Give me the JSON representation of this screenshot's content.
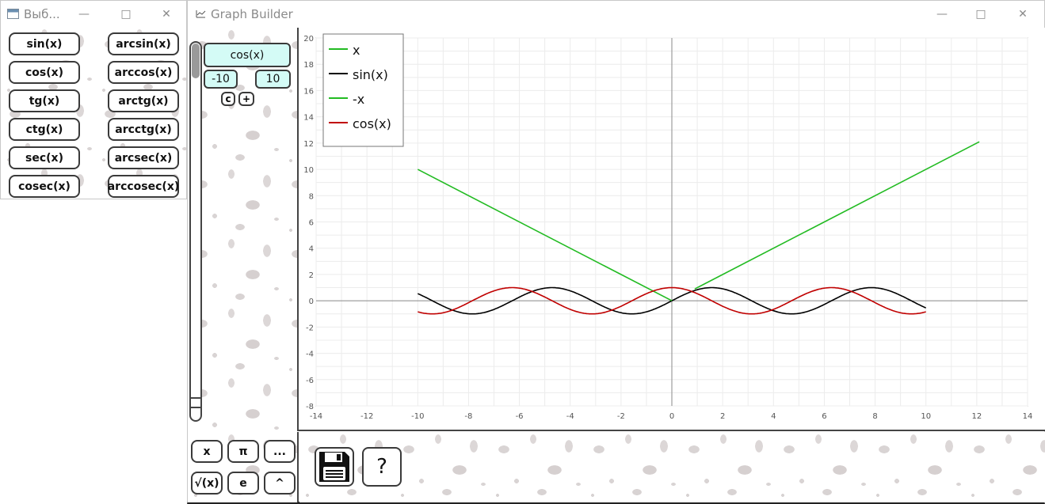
{
  "picker": {
    "title": "Выб...",
    "functions_left": [
      "sin(x)",
      "cos(x)",
      "tg(x)",
      "ctg(x)",
      "sec(x)",
      "cosec(x)"
    ],
    "functions_right": [
      "arcsin(x)",
      "arccos(x)",
      "arctg(x)",
      "arcctg(x)",
      "arcsec(x)",
      "arccosec(x)"
    ]
  },
  "main": {
    "title": "Graph Builder"
  },
  "side": {
    "expression": "cos(x)",
    "range_from": "-10",
    "range_to": "10",
    "btn_c": "c",
    "btn_plus": "+"
  },
  "keypad": {
    "row1": [
      "x",
      "π",
      "..."
    ],
    "row2": [
      "√(x)",
      "e",
      "^"
    ]
  },
  "help": {
    "label": "?"
  },
  "chart_data": {
    "type": "line",
    "xlim": [
      -14,
      14
    ],
    "ylim": [
      -8,
      20
    ],
    "x_ticks": [
      -14,
      -12,
      -10,
      -8,
      -6,
      -4,
      -2,
      0,
      2,
      4,
      6,
      8,
      10,
      12,
      14
    ],
    "y_ticks": [
      -8,
      -6,
      -4,
      -2,
      0,
      2,
      4,
      6,
      8,
      10,
      12,
      14,
      16,
      18,
      20
    ],
    "grid": true,
    "legend_position": "top-left",
    "series": [
      {
        "name": "x",
        "color": "#22bb22",
        "points": [
          [
            0.9,
            0.9
          ],
          [
            12.1,
            12.1
          ]
        ]
      },
      {
        "name": "sin(x)",
        "color": "#000000",
        "function": "sin",
        "domain": [
          -10,
          10
        ]
      },
      {
        "name": "-x",
        "color": "#22bb22",
        "points": [
          [
            -10,
            10
          ],
          [
            0,
            0
          ]
        ]
      },
      {
        "name": "cos(x)",
        "color": "#c00000",
        "function": "cos",
        "domain": [
          -10,
          10
        ]
      }
    ]
  }
}
